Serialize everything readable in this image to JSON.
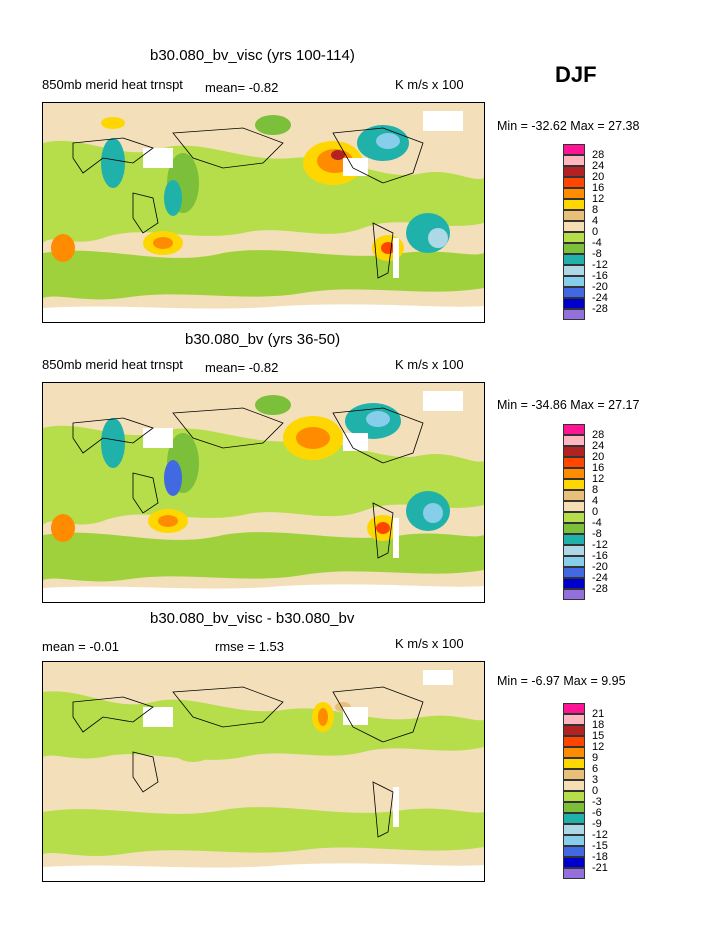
{
  "season": "DJF",
  "panels": [
    {
      "title": "b30.080_bv_visc (yrs 100-114)",
      "left_label": "850mb merid heat trnspt",
      "mean_text": "mean=   -0.82",
      "units": "K m/s x 100",
      "minmax": "Min = -32.62 Max =  27.38"
    },
    {
      "title": "b30.080_bv (yrs 36-50)",
      "left_label": "850mb merid heat trnspt",
      "mean_text": "mean=   -0.82",
      "units": "K m/s x 100",
      "minmax": "Min = -34.86 Max =  27.17"
    },
    {
      "title": "b30.080_bv_visc - b30.080_bv",
      "left_label": "mean =   -0.01",
      "mean_text": "rmse =   1.53",
      "units": "K m/s x 100",
      "minmax": "Min =  -6.97 Max =   9.95"
    }
  ],
  "colorbars": [
    {
      "colors": [
        "#ff1493",
        "#ffb6c1",
        "#b22222",
        "#ff4500",
        "#ff8c00",
        "#ffd700",
        "#e8c07a",
        "#f5deb3",
        "#b5de4a",
        "#7bbf3a",
        "#20b2aa",
        "#add8e6",
        "#87ceeb",
        "#4169e1",
        "#0000cd",
        "#9370db"
      ],
      "labels": [
        "28",
        "24",
        "20",
        "16",
        "12",
        "8",
        "4",
        "0",
        "-4",
        "-8",
        "-12",
        "-16",
        "-20",
        "-24",
        "-28"
      ]
    },
    {
      "colors": [
        "#ff1493",
        "#ffb6c1",
        "#b22222",
        "#ff4500",
        "#ff8c00",
        "#ffd700",
        "#e8c07a",
        "#f5deb3",
        "#b5de4a",
        "#7bbf3a",
        "#20b2aa",
        "#add8e6",
        "#87ceeb",
        "#4169e1",
        "#0000cd",
        "#9370db"
      ],
      "labels": [
        "28",
        "24",
        "20",
        "16",
        "12",
        "8",
        "4",
        "0",
        "-4",
        "-8",
        "-12",
        "-16",
        "-20",
        "-24",
        "-28"
      ]
    },
    {
      "colors": [
        "#ff1493",
        "#ffb6c1",
        "#b22222",
        "#ff4500",
        "#ff8c00",
        "#ffd700",
        "#e8c07a",
        "#f5deb3",
        "#b5de4a",
        "#7bbf3a",
        "#20b2aa",
        "#add8e6",
        "#87ceeb",
        "#4169e1",
        "#0000cd",
        "#9370db"
      ],
      "labels": [
        "21",
        "18",
        "15",
        "12",
        "9",
        "6",
        "3",
        "0",
        "-3",
        "-6",
        "-9",
        "-12",
        "-15",
        "-18",
        "-21"
      ]
    }
  ],
  "chart_data": [
    {
      "type": "heatmap",
      "title": "b30.080_bv_visc (yrs 100-114)",
      "field": "850mb merid heat trnspt",
      "units": "K m/s x 100",
      "mean": -0.82,
      "min": -32.62,
      "max": 27.38,
      "contour_levels": [
        -28,
        -24,
        -20,
        -16,
        -12,
        -8,
        -4,
        0,
        4,
        8,
        12,
        16,
        20,
        24,
        28
      ]
    },
    {
      "type": "heatmap",
      "title": "b30.080_bv (yrs 36-50)",
      "field": "850mb merid heat trnspt",
      "units": "K m/s x 100",
      "mean": -0.82,
      "min": -34.86,
      "max": 27.17,
      "contour_levels": [
        -28,
        -24,
        -20,
        -16,
        -12,
        -8,
        -4,
        0,
        4,
        8,
        12,
        16,
        20,
        24,
        28
      ]
    },
    {
      "type": "heatmap",
      "title": "b30.080_bv_visc - b30.080_bv",
      "units": "K m/s x 100",
      "mean": -0.01,
      "rmse": 1.53,
      "min": -6.97,
      "max": 9.95,
      "contour_levels": [
        -21,
        -18,
        -15,
        -12,
        -9,
        -6,
        -3,
        0,
        3,
        6,
        9,
        12,
        15,
        18,
        21
      ]
    }
  ]
}
